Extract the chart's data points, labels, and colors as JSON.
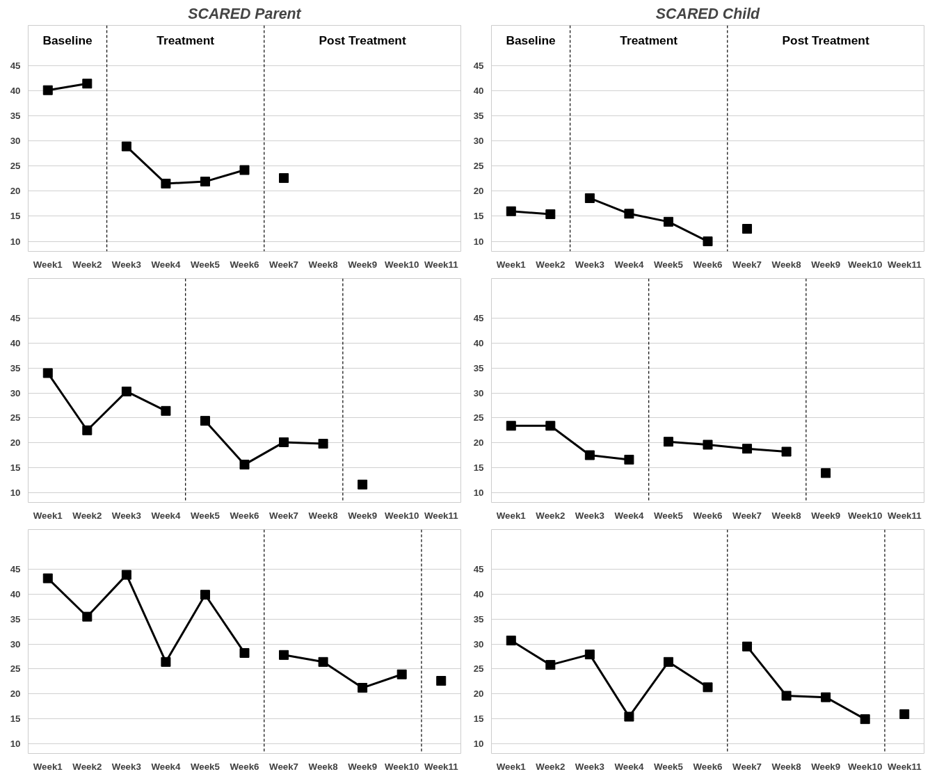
{
  "chart_data": [
    {
      "type": "line",
      "title": "SCARED Parent",
      "marker": "square",
      "grid": "y",
      "ylim": [
        8,
        53
      ],
      "yticks": [
        10,
        15,
        20,
        25,
        30,
        35,
        40,
        45
      ],
      "categories": [
        "Week1",
        "Week2",
        "Week3",
        "Week4",
        "Week5",
        "Week6",
        "Week7",
        "Week8",
        "Week9",
        "Week10",
        "Week11"
      ],
      "annotations": [
        "Baseline",
        "Treatment",
        "Post Treatment"
      ],
      "series": [
        {
          "color": "#000000",
          "values": [
            40.1,
            41.4,
            null,
            null,
            null,
            null,
            null,
            null,
            null,
            null,
            null
          ]
        },
        {
          "color": "#000000",
          "values": [
            null,
            null,
            28.9,
            21.5,
            21.9,
            24.2,
            null,
            null,
            null,
            null,
            null
          ]
        },
        {
          "color": "#000000",
          "type": "scatter",
          "values": [
            null,
            null,
            null,
            null,
            null,
            null,
            22.6,
            null,
            null,
            null,
            null
          ]
        }
      ]
    },
    {
      "type": "line",
      "title": "SCARED Child",
      "marker": "square",
      "grid": "y",
      "ylim": [
        8,
        53
      ],
      "yticks": [
        10,
        15,
        20,
        25,
        30,
        35,
        40,
        45
      ],
      "categories": [
        "Week1",
        "Week2",
        "Week3",
        "Week4",
        "Week5",
        "Week6",
        "Week7",
        "Week8",
        "Week9",
        "Week10",
        "Week11"
      ],
      "annotations": [
        "Baseline",
        "Treatment",
        "Post Treatment"
      ],
      "series": [
        {
          "color": "#000000",
          "values": [
            16.0,
            15.4,
            null,
            null,
            null,
            null,
            null,
            null,
            null,
            null,
            null
          ]
        },
        {
          "color": "#000000",
          "values": [
            null,
            null,
            18.6,
            15.5,
            13.9,
            10.0,
            null,
            null,
            null,
            null,
            null
          ]
        },
        {
          "color": "#000000",
          "type": "scatter",
          "values": [
            null,
            null,
            null,
            null,
            null,
            null,
            12.5,
            null,
            null,
            null,
            null
          ]
        }
      ]
    },
    {
      "type": "line",
      "marker": "square",
      "grid": "y",
      "ylim": [
        8,
        53
      ],
      "yticks": [
        10,
        15,
        20,
        25,
        30,
        35,
        40,
        45
      ],
      "categories": [
        "Week1",
        "Week2",
        "Week3",
        "Week4",
        "Week5",
        "Week6",
        "Week7",
        "Week8",
        "Week9",
        "Week10",
        "Week11"
      ],
      "series": [
        {
          "color": "#000000",
          "values": [
            34.0,
            22.5,
            30.3,
            26.4,
            null,
            null,
            null,
            null,
            null,
            null,
            null
          ]
        },
        {
          "color": "#000000",
          "values": [
            null,
            null,
            null,
            null,
            24.4,
            15.6,
            20.1,
            19.8,
            null,
            null,
            null
          ]
        },
        {
          "color": "#000000",
          "type": "scatter",
          "values": [
            null,
            null,
            null,
            null,
            null,
            null,
            null,
            null,
            11.6,
            null,
            null
          ]
        }
      ]
    },
    {
      "type": "line",
      "marker": "square",
      "grid": "y",
      "ylim": [
        8,
        53
      ],
      "yticks": [
        10,
        15,
        20,
        25,
        30,
        35,
        40,
        45
      ],
      "categories": [
        "Week1",
        "Week2",
        "Week3",
        "Week4",
        "Week5",
        "Week6",
        "Week7",
        "Week8",
        "Week9",
        "Week10",
        "Week11"
      ],
      "series": [
        {
          "color": "#000000",
          "values": [
            23.4,
            23.4,
            17.5,
            16.6,
            null,
            null,
            null,
            null,
            null,
            null,
            null
          ]
        },
        {
          "color": "#000000",
          "values": [
            null,
            null,
            null,
            null,
            20.2,
            19.6,
            18.8,
            18.2,
            null,
            null,
            null
          ]
        },
        {
          "color": "#000000",
          "type": "scatter",
          "values": [
            null,
            null,
            null,
            null,
            null,
            null,
            null,
            null,
            13.9,
            null,
            null
          ]
        }
      ]
    },
    {
      "type": "line",
      "marker": "square",
      "grid": "y",
      "ylim": [
        8,
        53
      ],
      "yticks": [
        10,
        15,
        20,
        25,
        30,
        35,
        40,
        45
      ],
      "categories": [
        "Week1",
        "Week2",
        "Week3",
        "Week4",
        "Week5",
        "Week6",
        "Week7",
        "Week8",
        "Week9",
        "Week10",
        "Week11"
      ],
      "series": [
        {
          "color": "#000000",
          "values": [
            43.2,
            35.5,
            43.9,
            26.4,
            39.9,
            28.2,
            null,
            null,
            null,
            null,
            null
          ]
        },
        {
          "color": "#000000",
          "values": [
            null,
            null,
            null,
            null,
            null,
            null,
            27.8,
            26.4,
            21.2,
            23.9,
            null
          ]
        },
        {
          "color": "#000000",
          "type": "scatter",
          "values": [
            null,
            null,
            null,
            null,
            null,
            null,
            null,
            null,
            null,
            null,
            22.6
          ]
        }
      ]
    },
    {
      "type": "line",
      "marker": "square",
      "grid": "y",
      "ylim": [
        8,
        53
      ],
      "yticks": [
        10,
        15,
        20,
        25,
        30,
        35,
        40,
        45
      ],
      "categories": [
        "Week1",
        "Week2",
        "Week3",
        "Week4",
        "Week5",
        "Week6",
        "Week7",
        "Week8",
        "Week9",
        "Week10",
        "Week11"
      ],
      "series": [
        {
          "color": "#000000",
          "values": [
            30.7,
            25.8,
            27.9,
            15.4,
            26.4,
            21.3,
            null,
            null,
            null,
            null,
            null
          ]
        },
        {
          "color": "#000000",
          "values": [
            null,
            null,
            null,
            null,
            null,
            null,
            29.5,
            19.6,
            19.3,
            14.9,
            null
          ]
        },
        {
          "color": "#000000",
          "type": "scatter",
          "values": [
            null,
            null,
            null,
            null,
            null,
            null,
            null,
            null,
            null,
            null,
            15.9
          ]
        }
      ]
    }
  ]
}
